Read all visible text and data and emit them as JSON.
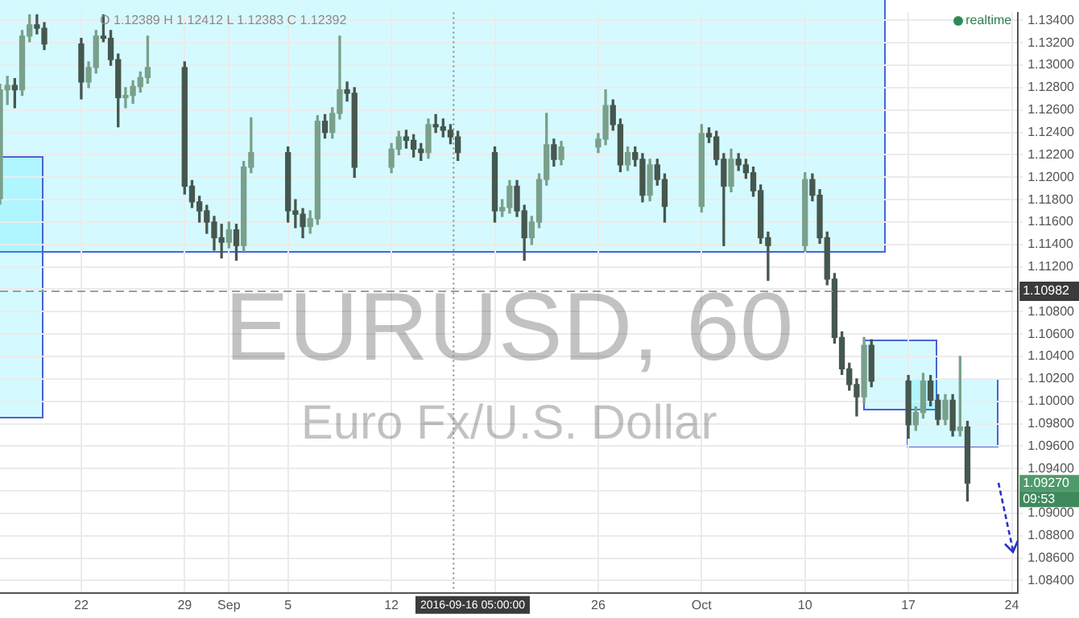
{
  "chart_data": {
    "type": "candlestick",
    "title": "EURUSD, 60",
    "subtitle": "Euro Fx/U.S. Dollar",
    "colors": [
      "#7aa08c",
      "#7aa08c",
      "#46574f",
      "#7aa08c",
      "#7aa08c",
      "#46574f",
      "#46574f",
      "#46574f",
      "#7aa08c",
      "#7aa08c",
      "#46574f",
      "#46574f",
      "#46574f",
      "#7aa08c",
      "#7aa08c",
      "#7aa08c",
      "#7aa08c",
      "#46574f",
      "#46574f",
      "#46574f",
      "#46574f",
      "#46574f",
      "#46574f",
      "#7aa08c",
      "#46574f",
      "#7aa08c",
      "#7aa08c",
      "#46574f",
      "#46574f",
      "#46574f",
      "#7aa08c",
      "#7aa08c",
      "#46574f",
      "#7aa08c",
      "#7aa08c",
      "#46574f",
      "#46574f",
      "#7aa08c",
      "#7aa08c",
      "#46574f",
      "#46574f",
      "#46574f",
      "#7aa08c",
      "#46574f",
      "#46574f",
      "#46574f",
      "#46574f",
      "#46574f",
      "#7aa08c",
      "#7aa08c",
      "#46574f",
      "#46574f",
      "#7aa08c",
      "#7aa08c",
      "#7aa08c",
      "#46574f",
      "#7aa08c",
      "#7aa08c",
      "#7aa08c",
      "#46574f",
      "#46574f",
      "#7aa08c",
      "#46574f",
      "#46574f",
      "#7aa08c",
      "#46574f",
      "#46574f",
      "#7aa08c",
      "#46574f",
      "#46574f",
      "#46574f",
      "#7aa08c",
      "#46574f",
      "#46574f",
      "#46574f",
      "#46574f",
      "#46574f",
      "#7aa08c",
      "#46574f",
      "#46574f",
      "#46574f",
      "#46574f",
      "#46574f",
      "#46574f",
      "#46574f",
      "#7aa08c",
      "#46574f",
      "#46574f",
      "#7aa08c",
      "#7aa08c",
      "#46574f",
      "#46574f",
      "#7aa08c",
      "#46574f",
      "#7aa08c",
      "#46574f"
    ],
    "x": [
      "2016-08-16T12:00",
      "2016-08-17T00:00",
      "2016-08-17T12:00",
      "2016-08-18T00:00",
      "2016-08-18T12:00",
      "2016-08-19T00:00",
      "2016-08-19T12:00",
      "2016-08-22T00:00",
      "2016-08-22T12:00",
      "2016-08-23T00:00",
      "2016-08-23T12:00",
      "2016-08-24T00:00",
      "2016-08-24T12:00",
      "2016-08-25T00:00",
      "2016-08-25T12:00",
      "2016-08-26T00:00",
      "2016-08-26T12:00",
      "2016-08-29T00:00",
      "2016-08-29T12:00",
      "2016-08-30T00:00",
      "2016-08-30T12:00",
      "2016-08-31T00:00",
      "2016-08-31T12:00",
      "2016-09-01T00:00",
      "2016-09-01T12:00",
      "2016-09-02T00:00",
      "2016-09-02T12:00",
      "2016-09-05T00:00",
      "2016-09-05T12:00",
      "2016-09-06T00:00",
      "2016-09-06T12:00",
      "2016-09-07T00:00",
      "2016-09-07T12:00",
      "2016-09-08T00:00",
      "2016-09-08T12:00",
      "2016-09-09T00:00",
      "2016-09-09T12:00",
      "2016-09-12T00:00",
      "2016-09-12T12:00",
      "2016-09-13T00:00",
      "2016-09-13T12:00",
      "2016-09-14T00:00",
      "2016-09-14T12:00",
      "2016-09-15T00:00",
      "2016-09-15T12:00",
      "2016-09-16T00:00",
      "2016-09-16T12:00",
      "2016-09-19T00:00",
      "2016-09-19T12:00",
      "2016-09-20T00:00",
      "2016-09-20T12:00",
      "2016-09-21T00:00",
      "2016-09-21T12:00",
      "2016-09-22T00:00",
      "2016-09-22T12:00",
      "2016-09-23T00:00",
      "2016-09-23T12:00",
      "2016-09-26T00:00",
      "2016-09-26T12:00",
      "2016-09-27T00:00",
      "2016-09-27T12:00",
      "2016-09-28T00:00",
      "2016-09-28T12:00",
      "2016-09-29T00:00",
      "2016-09-29T12:00",
      "2016-09-30T00:00",
      "2016-09-30T12:00",
      "2016-10-03T00:00",
      "2016-10-03T12:00",
      "2016-10-04T00:00",
      "2016-10-04T12:00",
      "2016-10-05T00:00",
      "2016-10-05T12:00",
      "2016-10-06T00:00",
      "2016-10-06T12:00",
      "2016-10-07T00:00",
      "2016-10-07T12:00",
      "2016-10-10T00:00",
      "2016-10-10T12:00",
      "2016-10-11T00:00",
      "2016-10-11T12:00",
      "2016-10-12T00:00",
      "2016-10-12T12:00",
      "2016-10-13T00:00",
      "2016-10-13T12:00",
      "2016-10-14T00:00",
      "2016-10-14T12:00",
      "2016-10-17T00:00",
      "2016-10-17T12:00",
      "2016-10-18T00:00",
      "2016-10-18T12:00",
      "2016-10-19T00:00",
      "2016-10-19T12:00",
      "2016-10-20T00:00",
      "2016-10-20T12:00",
      "2016-10-21T00:00"
    ],
    "ohlc": [
      [
        1.1181,
        1.1283,
        1.1176,
        1.1278
      ],
      [
        1.1278,
        1.129,
        1.1265,
        1.1282
      ],
      [
        1.1282,
        1.1288,
        1.1262,
        1.1278
      ],
      [
        1.1278,
        1.1331,
        1.1273,
        1.1326
      ],
      [
        1.1326,
        1.1345,
        1.1321,
        1.1336
      ],
      [
        1.1336,
        1.1345,
        1.1328,
        1.1333
      ],
      [
        1.1333,
        1.1338,
        1.1314,
        1.1319
      ],
      [
        1.1319,
        1.1324,
        1.127,
        1.1285
      ],
      [
        1.1285,
        1.1303,
        1.128,
        1.1298
      ],
      [
        1.1298,
        1.1331,
        1.1293,
        1.1326
      ],
      [
        1.1326,
        1.1345,
        1.1321,
        1.1324
      ],
      [
        1.1324,
        1.1331,
        1.13,
        1.1305
      ],
      [
        1.1305,
        1.131,
        1.1245,
        1.1271
      ],
      [
        1.1271,
        1.128,
        1.1262,
        1.1273
      ],
      [
        1.1273,
        1.1286,
        1.1266,
        1.1281
      ],
      [
        1.1281,
        1.1294,
        1.1276,
        1.1289
      ],
      [
        1.1289,
        1.1326,
        1.1284,
        1.1298
      ],
      [
        1.1298,
        1.1303,
        1.1185,
        1.1192
      ],
      [
        1.1192,
        1.1197,
        1.1173,
        1.1178
      ],
      [
        1.1178,
        1.1183,
        1.116,
        1.117
      ],
      [
        1.117,
        1.1175,
        1.115,
        1.116
      ],
      [
        1.116,
        1.1165,
        1.1135,
        1.1146
      ],
      [
        1.1146,
        1.1158,
        1.1128,
        1.1142
      ],
      [
        1.1142,
        1.116,
        1.1137,
        1.1153
      ],
      [
        1.1153,
        1.1158,
        1.1126,
        1.1139
      ],
      [
        1.1139,
        1.1214,
        1.1134,
        1.1209
      ],
      [
        1.1209,
        1.1253,
        1.1204,
        1.1222
      ],
      [
        1.1222,
        1.1227,
        1.116,
        1.117
      ],
      [
        1.117,
        1.118,
        1.1155,
        1.1167
      ],
      [
        1.1167,
        1.1172,
        1.1146,
        1.1156
      ],
      [
        1.1156,
        1.117,
        1.115,
        1.1163
      ],
      [
        1.1163,
        1.1255,
        1.1158,
        1.125
      ],
      [
        1.125,
        1.1256,
        1.1235,
        1.124
      ],
      [
        1.124,
        1.1262,
        1.1235,
        1.1257
      ],
      [
        1.1257,
        1.1326,
        1.1252,
        1.1278
      ],
      [
        1.1278,
        1.1285,
        1.1268,
        1.1275
      ],
      [
        1.1275,
        1.128,
        1.12,
        1.1209
      ],
      [
        1.1209,
        1.123,
        1.1204,
        1.1225
      ],
      [
        1.1225,
        1.1241,
        1.122,
        1.1236
      ],
      [
        1.1236,
        1.1242,
        1.1226,
        1.1233
      ],
      [
        1.1233,
        1.1238,
        1.1218,
        1.1225
      ],
      [
        1.1225,
        1.123,
        1.1215,
        1.1222
      ],
      [
        1.1222,
        1.1252,
        1.1217,
        1.1247
      ],
      [
        1.1247,
        1.1256,
        1.124,
        1.1245
      ],
      [
        1.1245,
        1.1252,
        1.1236,
        1.1242
      ],
      [
        1.1242,
        1.1247,
        1.123,
        1.1236
      ],
      [
        1.1236,
        1.1241,
        1.1215,
        1.1222
      ],
      [
        1.1222,
        1.1227,
        1.116,
        1.117
      ],
      [
        1.117,
        1.118,
        1.1165,
        1.1173
      ],
      [
        1.1173,
        1.1197,
        1.1168,
        1.1192
      ],
      [
        1.1192,
        1.1197,
        1.1165,
        1.117
      ],
      [
        1.117,
        1.1175,
        1.1126,
        1.1146
      ],
      [
        1.1146,
        1.1165,
        1.114,
        1.116
      ],
      [
        1.116,
        1.1203,
        1.1155,
        1.1198
      ],
      [
        1.1198,
        1.1257,
        1.1193,
        1.1229
      ],
      [
        1.1229,
        1.1234,
        1.121,
        1.1216
      ],
      [
        1.1216,
        1.1232,
        1.1211,
        1.1227
      ],
      [
        1.1227,
        1.1239,
        1.1222,
        1.1234
      ],
      [
        1.1234,
        1.1278,
        1.1229,
        1.1264
      ],
      [
        1.1264,
        1.1269,
        1.1242,
        1.1247
      ],
      [
        1.1247,
        1.1252,
        1.1205,
        1.1211
      ],
      [
        1.1211,
        1.1227,
        1.1206,
        1.1222
      ],
      [
        1.1222,
        1.1227,
        1.121,
        1.1216
      ],
      [
        1.1216,
        1.1221,
        1.1178,
        1.1184
      ],
      [
        1.1184,
        1.1216,
        1.1179,
        1.1211
      ],
      [
        1.1211,
        1.1216,
        1.1193,
        1.1198
      ],
      [
        1.1198,
        1.1203,
        1.116,
        1.1174
      ],
      [
        1.1174,
        1.1247,
        1.1169,
        1.1239
      ],
      [
        1.1239,
        1.1244,
        1.1231,
        1.1236
      ],
      [
        1.1236,
        1.1241,
        1.1211,
        1.1216
      ],
      [
        1.1216,
        1.1221,
        1.1139,
        1.1192
      ],
      [
        1.1192,
        1.1225,
        1.1187,
        1.1216
      ],
      [
        1.1216,
        1.1221,
        1.1206,
        1.1211
      ],
      [
        1.1211,
        1.1216,
        1.1199,
        1.1204
      ],
      [
        1.1204,
        1.1209,
        1.1183,
        1.1188
      ],
      [
        1.1188,
        1.1193,
        1.1141,
        1.1146
      ],
      [
        1.1146,
        1.1151,
        1.1108,
        1.1139
      ],
      [
        1.1139,
        1.1204,
        1.1134,
        1.1198
      ],
      [
        1.1198,
        1.1203,
        1.1179,
        1.1184
      ],
      [
        1.1184,
        1.1189,
        1.1141,
        1.1146
      ],
      [
        1.1146,
        1.1151,
        1.1104,
        1.1109
      ],
      [
        1.1109,
        1.1114,
        1.1052,
        1.1057
      ],
      [
        1.1057,
        1.1062,
        1.1024,
        1.1029
      ],
      [
        1.1029,
        1.1034,
        1.101,
        1.1015
      ],
      [
        1.1015,
        1.102,
        1.0987,
        1.1004
      ],
      [
        1.1004,
        1.1057,
        1.0999,
        1.105
      ],
      [
        1.105,
        1.1055,
        1.1013,
        1.1018
      ],
      [
        1.1018,
        1.1023,
        1.0967,
        1.0979
      ],
      [
        1.0979,
        1.0995,
        1.0974,
        1.099
      ],
      [
        1.099,
        1.1025,
        1.0985,
        1.1018
      ],
      [
        1.1018,
        1.1023,
        1.0996,
        1.1001
      ],
      [
        1.1001,
        1.1006,
        1.0979,
        1.0984
      ],
      [
        1.0984,
        1.1006,
        1.0979,
        1.1001
      ],
      [
        1.1001,
        1.1006,
        1.0969,
        1.0974
      ],
      [
        1.0974,
        1.104,
        1.0969,
        1.0977
      ],
      [
        1.0977,
        1.0982,
        1.0911,
        1.0927
      ]
    ],
    "xlim": [
      "2016-08-16T12:00",
      "2016-10-24T10:00"
    ],
    "xticks": [
      {
        "value": "2016-08-22",
        "label": "22"
      },
      {
        "value": "2016-08-29",
        "label": "29"
      },
      {
        "value": "2016-09-01",
        "label": "Sep"
      },
      {
        "value": "2016-09-05",
        "label": "5"
      },
      {
        "value": "2016-09-12",
        "label": "12"
      },
      {
        "value": "2016-09-19",
        "label": null
      },
      {
        "value": "2016-09-26",
        "label": "26"
      },
      {
        "value": "2016-10-03",
        "label": "Oct"
      },
      {
        "value": "2016-10-10",
        "label": "10"
      },
      {
        "value": "2016-10-17",
        "label": "17"
      },
      {
        "value": "2016-10-24",
        "label": "24"
      }
    ],
    "ylim": [
      1.0829,
      1.1347
    ],
    "yticks": [
      {
        "value": 1.084,
        "label": "1.08400"
      },
      {
        "value": 1.086,
        "label": "1.08600"
      },
      {
        "value": 1.088,
        "label": "1.08800"
      },
      {
        "value": 1.09,
        "label": "1.09000"
      },
      {
        "value": 1.092,
        "label": null
      },
      {
        "value": 1.094,
        "label": "1.09400"
      },
      {
        "value": 1.096,
        "label": "1.09600"
      },
      {
        "value": 1.098,
        "label": "1.09800"
      },
      {
        "value": 1.1,
        "label": "1.10000"
      },
      {
        "value": 1.102,
        "label": "1.10200"
      },
      {
        "value": 1.104,
        "label": "1.10400"
      },
      {
        "value": 1.106,
        "label": "1.10600"
      },
      {
        "value": 1.108,
        "label": "1.10800"
      },
      {
        "value": 1.11,
        "label": null
      },
      {
        "value": 1.112,
        "label": "1.11200"
      },
      {
        "value": 1.114,
        "label": "1.11400"
      },
      {
        "value": 1.116,
        "label": "1.11600"
      },
      {
        "value": 1.118,
        "label": "1.11800"
      },
      {
        "value": 1.12,
        "label": "1.12000"
      },
      {
        "value": 1.122,
        "label": "1.12200"
      },
      {
        "value": 1.124,
        "label": "1.12400"
      },
      {
        "value": 1.126,
        "label": "1.12600"
      },
      {
        "value": 1.128,
        "label": "1.12800"
      },
      {
        "value": 1.13,
        "label": "1.13000"
      },
      {
        "value": 1.132,
        "label": "1.13200"
      },
      {
        "value": 1.134,
        "label": "1.13400"
      }
    ],
    "grid": true,
    "legend": false,
    "ref_lines": [
      {
        "axis": "y",
        "value": 1.10982,
        "label": "1.10982",
        "color": "#9e9e9e",
        "line_style": "dashed"
      },
      {
        "axis": "x",
        "value": "2016-09-16T05:00",
        "label": "2016-09-16 05:00:00",
        "color": "#888888",
        "line_style": "dotted"
      }
    ],
    "annotations": [
      "O 1.12389 H 1.12412 L 1.12383 C 1.12392",
      "realtime",
      "1.09270",
      "09:53"
    ]
  }
}
